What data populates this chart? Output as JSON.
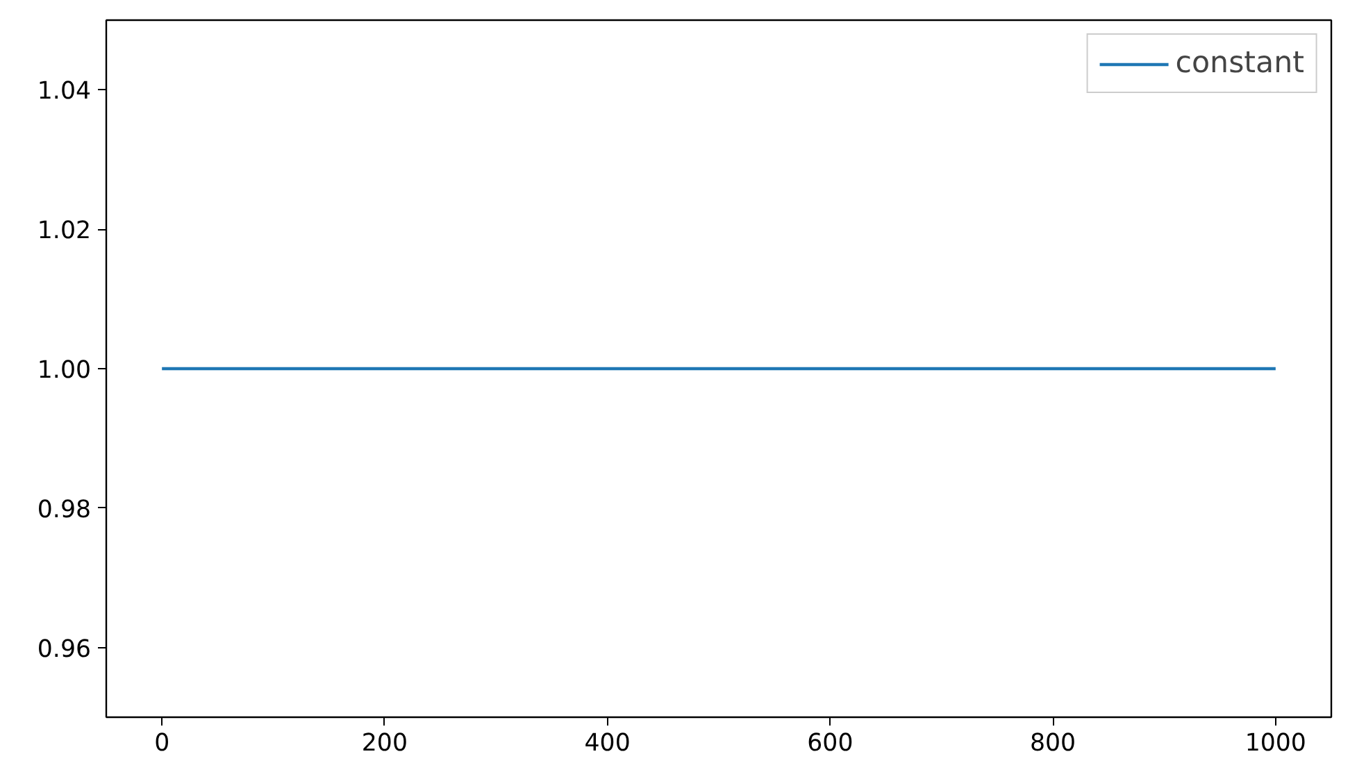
{
  "chart_data": {
    "type": "line",
    "x": [
      0,
      1000
    ],
    "series": [
      {
        "name": "constant",
        "color": "#1f77b4",
        "values": [
          1.0,
          1.0
        ]
      }
    ],
    "xlim": [
      -50,
      1050
    ],
    "ylim": [
      0.95,
      1.05
    ],
    "xticks": [
      0,
      200,
      400,
      600,
      800,
      1000
    ],
    "yticks": [
      {
        "value": 0.96,
        "label": "0.96"
      },
      {
        "value": 0.98,
        "label": "0.98"
      },
      {
        "value": 1.0,
        "label": "1.00"
      },
      {
        "value": 1.02,
        "label": "1.02"
      },
      {
        "value": 1.04,
        "label": "1.04"
      }
    ],
    "grid": false,
    "legend": "top right",
    "line_style": "solid",
    "marker": "none"
  }
}
